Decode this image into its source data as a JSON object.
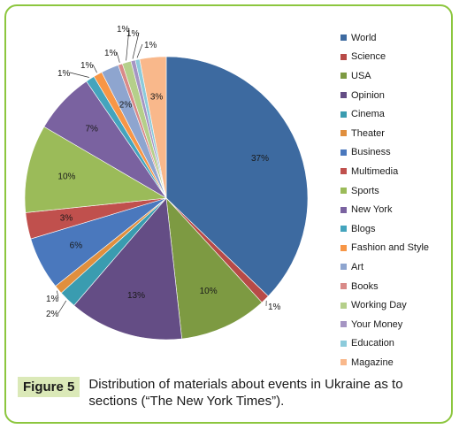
{
  "chart_data": {
    "type": "pie",
    "slices": [
      {
        "label": "World",
        "value": 37,
        "value_label": "37%",
        "color": "#3d6aa0"
      },
      {
        "label": "Science",
        "value": 1,
        "value_label": "1%",
        "color": "#b84a47"
      },
      {
        "label": "USA",
        "value": 10,
        "value_label": "10%",
        "color": "#7d9a42"
      },
      {
        "label": "Opinion",
        "value": 13,
        "value_label": "13%",
        "color": "#644d85"
      },
      {
        "label": "Cinema",
        "value": 2,
        "value_label": "2%",
        "color": "#3a9cb0"
      },
      {
        "label": "Theater",
        "value": 1,
        "value_label": "1%",
        "color": "#e08f3e"
      },
      {
        "label": "Business",
        "value": 6,
        "value_label": "6%",
        "color": "#4a78bd"
      },
      {
        "label": "Multimedia",
        "value": 3,
        "value_label": "3%",
        "color": "#c0504d"
      },
      {
        "label": "Sports",
        "value": 10,
        "value_label": "10%",
        "color": "#9bbb59"
      },
      {
        "label": "New York",
        "value": 7,
        "value_label": "7%",
        "color": "#7a62a0"
      },
      {
        "label": "Blogs",
        "value": 1,
        "value_label": "1%",
        "color": "#44a4bd"
      },
      {
        "label": "Fashion and Style",
        "value": 1,
        "value_label": "1%",
        "color": "#f79646"
      },
      {
        "label": "Art",
        "value": 2,
        "value_label": "2%",
        "color": "#8ea5cf"
      },
      {
        "label": "Books",
        "value": 0.5,
        "value_label": "1%",
        "color": "#d98a88"
      },
      {
        "label": "Working Day",
        "value": 1,
        "value_label": "1%",
        "color": "#b5cf8a"
      },
      {
        "label": "Your Money",
        "value": 0.5,
        "value_label": "1%",
        "color": "#a595c3"
      },
      {
        "label": "Education",
        "value": 0.5,
        "value_label": "1%",
        "color": "#8ccbdb"
      },
      {
        "label": "Magazine",
        "value": 3,
        "value_label": "3%",
        "color": "#f9b88b"
      }
    ]
  },
  "caption": {
    "figure_label": "Figure 5",
    "text": "Distribution of materials about events in Ukraine as to sections (“The New York Times”)."
  },
  "colors": {
    "frame_border": "#8cc63e",
    "caption_label_bg": "#dbe9b8"
  }
}
